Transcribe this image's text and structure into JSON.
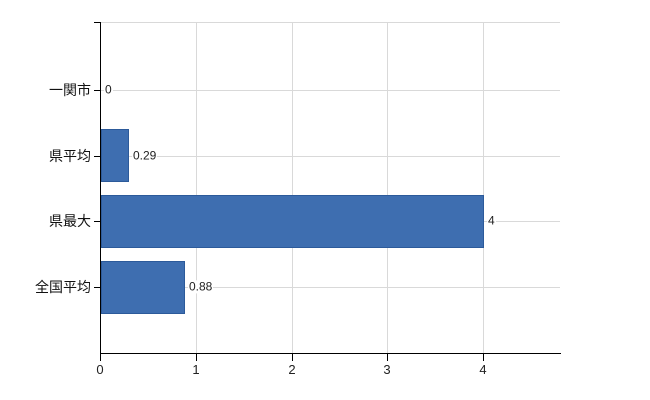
{
  "chart_data": {
    "type": "bar",
    "orientation": "horizontal",
    "title": "",
    "xlabel": "",
    "ylabel": "",
    "categories": [
      "一関市",
      "県平均",
      "県最大",
      "全国平均"
    ],
    "values": [
      0,
      0.29,
      4,
      0.88
    ],
    "value_labels": [
      "0",
      "0.29",
      "4",
      "0.88"
    ],
    "x_ticks": [
      0,
      1,
      2,
      3,
      4
    ],
    "x_tick_labels": [
      "0",
      "1",
      "2",
      "3",
      "4"
    ],
    "xlim": [
      0,
      4.8
    ],
    "grid": true,
    "legend": false,
    "colors": {
      "bar_fill": "#3E6EB0",
      "bar_border": "#2C5A9A",
      "gridline": "#D9D9D9",
      "axis": "#000000",
      "text": "#111111"
    }
  }
}
